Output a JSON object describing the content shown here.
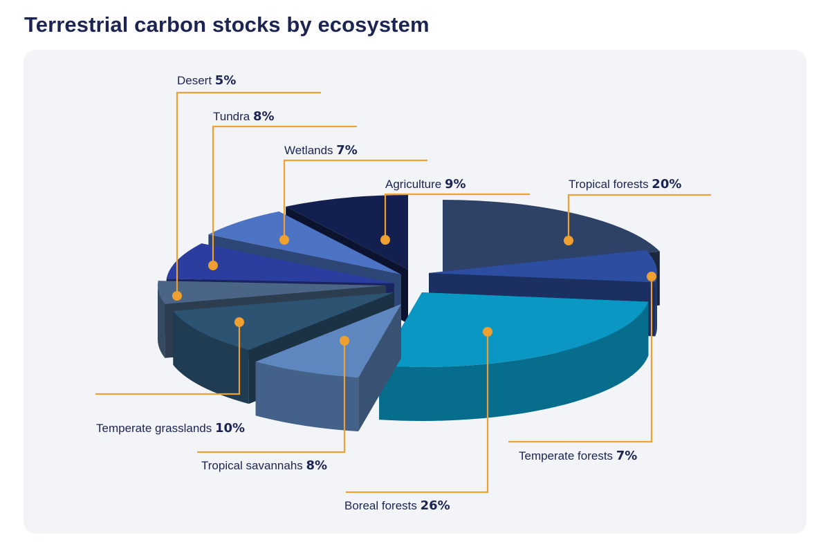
{
  "title": "Terrestrial carbon stocks by ecosystem",
  "colors": {
    "leader_line": "#f0a030",
    "text": "#1c2452",
    "panel": "#f2f4f7"
  },
  "chart_data": {
    "type": "pie",
    "style": "3d-exploded",
    "unit": "%",
    "slices": [
      {
        "label": "Tropical forests",
        "value": 20,
        "display": "20%",
        "color": "#2e4166"
      },
      {
        "label": "Temperate forests",
        "value": 7,
        "display": "7%",
        "color": "#2d4ea0"
      },
      {
        "label": "Boreal forests",
        "value": 26,
        "display": "26%",
        "color": "#0a97c4"
      },
      {
        "label": "Tropical savannahs",
        "value": 8,
        "display": "8%",
        "color": "#5f87bf"
      },
      {
        "label": "Temperate grasslands",
        "value": 10,
        "display": "10%",
        "color": "#2d5373"
      },
      {
        "label": "Desert",
        "value": 5,
        "display": "5%",
        "color": "#4a6586"
      },
      {
        "label": "Tundra",
        "value": 8,
        "display": "8%",
        "color": "#2b3ea0"
      },
      {
        "label": "Wetlands",
        "value": 7,
        "display": "7%",
        "color": "#4d74c4"
      },
      {
        "label": "Agriculture",
        "value": 9,
        "display": "9%",
        "color": "#131f4f"
      }
    ]
  }
}
